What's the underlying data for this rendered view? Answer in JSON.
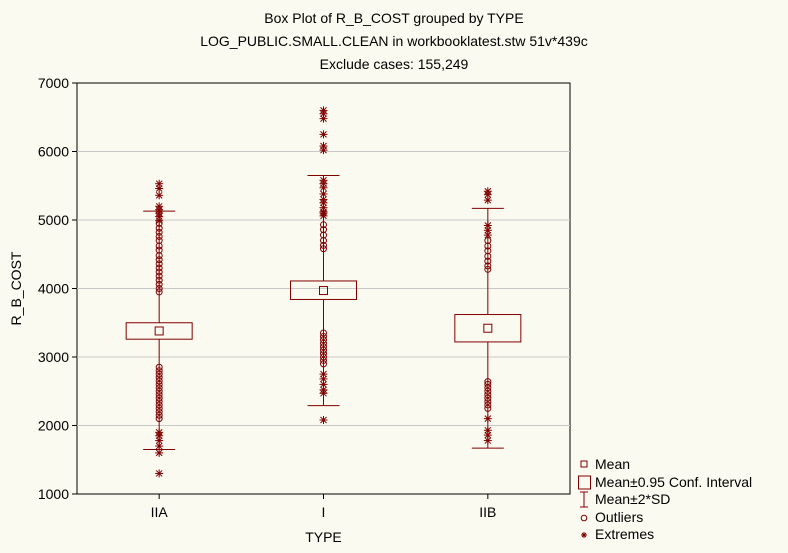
{
  "chart_data": {
    "type": "box",
    "title": "Box Plot of R_B_COST grouped by  TYPE",
    "subtitle_1": "LOG_PUBLIC.SMALL.CLEAN in workbooklatest.stw 51v*439c",
    "subtitle_2": "Exclude cases: 155,249",
    "xlabel": "TYPE",
    "ylabel": "R_B_COST",
    "ylim": [
      1000,
      7000
    ],
    "yticks": [
      "1000",
      "2000",
      "3000",
      "4000",
      "5000",
      "6000",
      "7000"
    ],
    "grid": true,
    "legend_position": "bottom-right",
    "colors": {
      "series": "#800000",
      "background": "#fbfaf0",
      "grid": "#c8c8c8"
    },
    "legend": [
      {
        "symbol": "mean",
        "label": "Mean"
      },
      {
        "symbol": "box",
        "label": "Mean±0.95 Conf. Interval"
      },
      {
        "symbol": "whisker",
        "label": "Mean±2*SD"
      },
      {
        "symbol": "outlier",
        "label": "Outliers"
      },
      {
        "symbol": "extreme",
        "label": "Extremes"
      }
    ],
    "groups": [
      {
        "category": "IIA",
        "mean": 3380,
        "ci_low": 3260,
        "ci_high": 3500,
        "sd_low": 1650,
        "sd_high": 5130,
        "outliers": [
          4950,
          4880,
          4820,
          4760,
          4700,
          4620,
          4560,
          4480,
          4420,
          4360,
          4300,
          4240,
          4180,
          4120,
          4060,
          4000,
          3950,
          2850,
          2800,
          2750,
          2700,
          2650,
          2600,
          2550,
          2500,
          2450,
          2400,
          2350,
          2300,
          2250,
          2200,
          2150,
          2100
        ],
        "extremes": [
          5530,
          5460,
          5360,
          5200,
          5150,
          5100,
          5050,
          4990,
          1900,
          1850,
          1780,
          1700,
          1600,
          1300
        ]
      },
      {
        "category": "I",
        "mean": 3970,
        "ci_low": 3840,
        "ci_high": 4110,
        "sd_low": 2290,
        "sd_high": 5650,
        "outliers": [
          4930,
          4860,
          4780,
          4700,
          4630,
          4580,
          3350,
          3300,
          3250,
          3200,
          3150,
          3100,
          3050,
          3000,
          2950,
          2900
        ],
        "extremes": [
          6600,
          6550,
          6480,
          6250,
          6080,
          6020,
          5580,
          5530,
          5470,
          5380,
          5300,
          5250,
          5180,
          5120,
          5100,
          5060,
          2750,
          2680,
          2600,
          2520,
          2470,
          2080
        ]
      },
      {
        "category": "IIB",
        "mean": 3420,
        "ci_low": 3220,
        "ci_high": 3620,
        "sd_low": 1670,
        "sd_high": 5170,
        "outliers": [
          4700,
          4620,
          4550,
          4470,
          4400,
          4330,
          4280,
          2640,
          2600,
          2550,
          2500,
          2450,
          2400,
          2350,
          2300,
          2250
        ],
        "extremes": [
          5420,
          5370,
          5290,
          4920,
          4850,
          4780,
          2100,
          1930,
          1860,
          1780
        ]
      }
    ]
  }
}
